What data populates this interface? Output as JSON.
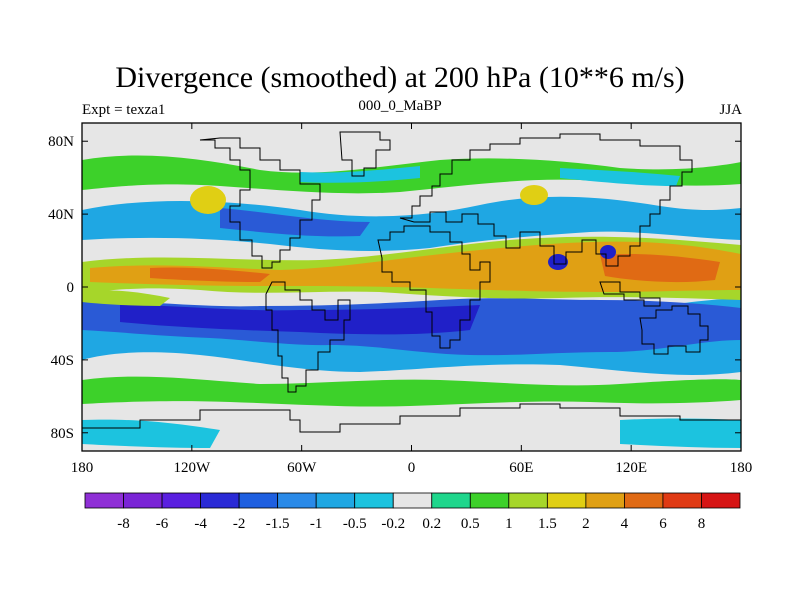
{
  "title": "Divergence (smoothed) at 200 hPa (10**6 m/s)",
  "left_label": "Expt = texza1",
  "center_label": "000_0_MaBP",
  "right_label": "JJA",
  "map": {
    "projection": "cylindrical equidistant",
    "lon_range": [
      -180,
      180
    ],
    "lat_range": [
      -90,
      90
    ],
    "lat_ticks": [
      {
        "value": 80,
        "label": "80N"
      },
      {
        "value": 40,
        "label": "40N"
      },
      {
        "value": 0,
        "label": "0"
      },
      {
        "value": -40,
        "label": "40S"
      },
      {
        "value": -80,
        "label": "80S"
      }
    ],
    "lon_ticks": [
      {
        "value": -180,
        "label": "180"
      },
      {
        "value": -120,
        "label": "120W"
      },
      {
        "value": -60,
        "label": "60W"
      },
      {
        "value": 0,
        "label": "0"
      },
      {
        "value": 60,
        "label": "60E"
      },
      {
        "value": 120,
        "label": "120E"
      },
      {
        "value": 180,
        "label": "180"
      }
    ]
  },
  "colorbar": {
    "colors": [
      "#8f2fd6",
      "#7a24d6",
      "#5a1fe0",
      "#2a2ad6",
      "#1e5fe0",
      "#2a8ae8",
      "#1fa7e3",
      "#1cc3df",
      "#e6e6e6",
      "#1fd68c",
      "#3dd12a",
      "#a6d62a",
      "#e0cf14",
      "#e0a014",
      "#e06a14",
      "#e03a14",
      "#d61414"
    ],
    "labels": [
      "-8",
      "-6",
      "-4",
      "-2",
      "-1.5",
      "-1",
      "-0.5",
      "-0.2",
      "0.2",
      "0.5",
      "1",
      "1.5",
      "2",
      "4",
      "6",
      "8"
    ]
  },
  "colors": {
    "background": "#e6e6e6",
    "frame": "#000000",
    "coastline": "#000000"
  }
}
